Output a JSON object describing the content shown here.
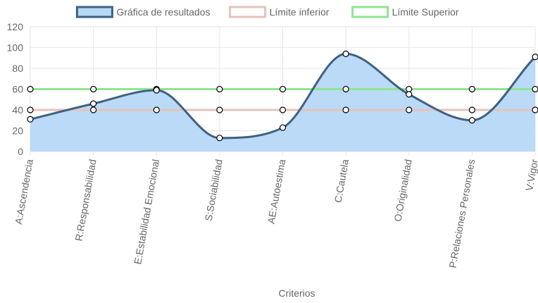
{
  "chart_data": {
    "type": "line",
    "categories": [
      "A:Ascendencia",
      "R:Responsabilidad",
      "E:Estabilidad Emocional",
      "S:Sociabilidad",
      "AE:Autoestima",
      "C:Cautela",
      "O:Originalidad",
      "P:Relaciones Personales",
      "V:Vigor"
    ],
    "series": [
      {
        "name": "Gráfica de resultados",
        "values": [
          31,
          46,
          59,
          13,
          23,
          94,
          55,
          30,
          91
        ],
        "color": "#3f6182",
        "fill": "#b6d8f7",
        "filled": true
      },
      {
        "name": "Límite inferior",
        "values": [
          40,
          40,
          40,
          40,
          40,
          40,
          40,
          40,
          40
        ],
        "color": "#e6c3ba",
        "filled": false
      },
      {
        "name": "Límite Superior",
        "values": [
          60,
          60,
          60,
          60,
          60,
          60,
          60,
          60,
          60
        ],
        "color": "#90e58f",
        "filled": false
      }
    ],
    "xlabel": "Criterios",
    "ylabel": "",
    "ylim": [
      0,
      120
    ],
    "yticks": [
      0,
      20,
      40,
      60,
      80,
      100,
      120
    ],
    "grid": true,
    "legend": "top-center"
  }
}
